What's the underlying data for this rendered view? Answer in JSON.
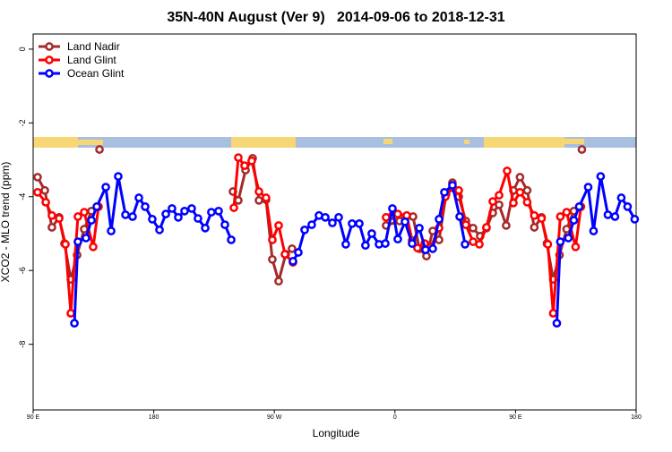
{
  "chart_data": {
    "type": "line",
    "title": "35N-40N August (Ver 9)   2014-09-06 to 2018-12-31",
    "xlabel": "Longitude",
    "ylabel": "XCO2 - MLO trend (ppm)",
    "xlim": [
      90,
      540
    ],
    "ylim": [
      -9.78,
      0.41
    ],
    "xticks": [
      {
        "value": 90,
        "label": "90 E"
      },
      180,
      {
        "value": 270,
        "label": "90 W"
      },
      {
        "value": 360,
        "label": "0"
      },
      {
        "value": 450,
        "label": "90 E"
      },
      {
        "value": 540,
        "label": "180"
      }
    ],
    "yticks": [
      0,
      -2,
      -4,
      -6,
      -8
    ],
    "legend": "top-left",
    "series": [
      {
        "name": "Land Nadir",
        "color": "#a52a2a",
        "x": [
          93.3,
          98.7,
          104.0,
          109.4,
          113.4,
          118.1,
          122.8,
          128.1,
          133.5,
          null,
          139.5,
          null,
          239.1,
          243.1,
          248.5,
          253.8,
          258.5,
          263.8,
          268.5,
          273.2,
          278.5,
          283.2,
          null,
          353.4,
          363.5,
          368.1,
          373.5,
          378.2,
          383.5,
          388.2,
          392.9,
          398.2,
          402.9,
          407.6,
          412.9,
          418.3,
          423.6,
          428.3,
          433.0,
          437.7,
          443.0,
          448.4,
          453.3,
          458.7,
          464.0,
          469.4,
          473.4,
          478.1,
          482.8,
          488.1,
          493.5,
          null,
          499.5
        ],
        "values": [
          -3.47,
          -3.83,
          -4.83,
          -4.56,
          -5.27,
          -6.24,
          -5.58,
          -4.88,
          -4.39,
          null,
          -2.72,
          null,
          -3.86,
          -4.1,
          -3.28,
          -2.96,
          -4.1,
          -4.08,
          -5.7,
          -6.29,
          -5.56,
          -5.41,
          null,
          -4.78,
          -4.66,
          -4.56,
          -4.54,
          -5.41,
          -5.61,
          -4.93,
          -5.17,
          -3.93,
          -3.62,
          -4.0,
          -4.66,
          -4.85,
          -5.07,
          -4.85,
          -4.44,
          -4.22,
          -4.78,
          -3.83,
          -3.47,
          -3.83,
          -4.83,
          -4.56,
          -5.27,
          -6.24,
          -5.58,
          -4.88,
          -4.39,
          null,
          -2.72
        ]
      },
      {
        "name": "Land Glint",
        "color": "#ff0000",
        "x": [
          93.3,
          99.4,
          104.0,
          109.4,
          114.1,
          118.1,
          123.4,
          128.1,
          134.8,
          138.8,
          null,
          239.8,
          243.1,
          247.8,
          253.1,
          258.5,
          263.8,
          268.5,
          273.2,
          277.9,
          283.9,
          null,
          353.4,
          358.1,
          362.1,
          368.8,
          372.8,
          376.8,
          382.2,
          386.9,
          392.9,
          397.6,
          402.9,
          407.6,
          412.9,
          418.3,
          423.0,
          428.3,
          433.0,
          437.7,
          443.7,
          448.4,
          453.3,
          458.7,
          464.0,
          469.4,
          474.1,
          478.1,
          483.4,
          488.1,
          494.8,
          498.8
        ],
        "values": [
          -3.88,
          -4.15,
          -4.51,
          -4.59,
          -5.29,
          -7.16,
          -4.54,
          -4.42,
          -5.36,
          -4.27,
          null,
          -4.3,
          -2.94,
          -3.16,
          -3.03,
          -3.86,
          -4.03,
          -5.17,
          -4.78,
          -5.56,
          -5.78,
          null,
          -4.56,
          -4.51,
          -4.47,
          -4.51,
          -5.19,
          -5.39,
          -5.27,
          -5.36,
          -4.85,
          -4.0,
          -3.76,
          -3.83,
          -4.76,
          -5.22,
          -5.29,
          -4.83,
          -4.13,
          -3.96,
          -3.3,
          -4.17,
          -3.88,
          -4.15,
          -4.51,
          -4.59,
          -5.29,
          -7.16,
          -4.54,
          -4.42,
          -5.36,
          -4.27
        ]
      },
      {
        "name": "Ocean Glint",
        "color": "#0000ff",
        "x": [
          120.8,
          123.4,
          129.4,
          133.5,
          137.5,
          144.2,
          148.2,
          153.5,
          158.9,
          164.2,
          168.9,
          173.6,
          178.9,
          184.3,
          189.0,
          193.6,
          198.3,
          203.0,
          208.3,
          213.0,
          218.4,
          223.0,
          228.4,
          233.1,
          237.8,
          null,
          283.9,
          287.9,
          292.6,
          297.9,
          303.3,
          308.0,
          313.3,
          318.0,
          323.3,
          328.0,
          333.4,
          338.0,
          342.7,
          348.1,
          352.8,
          358.1,
          362.1,
          367.5,
          372.8,
          378.2,
          382.8,
          388.2,
          392.9,
          396.9,
          402.9,
          408.3,
          412.3,
          null,
          480.8,
          483.4,
          489.4,
          493.5,
          497.5,
          504.2,
          508.2,
          513.5,
          518.9,
          524.2,
          528.9,
          533.6,
          538.9
        ],
        "values": [
          -7.43,
          -5.22,
          -5.12,
          -4.64,
          -4.27,
          -3.74,
          -4.93,
          -3.45,
          -4.49,
          -4.54,
          -4.03,
          -4.27,
          -4.61,
          -4.9,
          -4.47,
          -4.32,
          -4.56,
          -4.39,
          -4.32,
          -4.59,
          -4.85,
          -4.42,
          -4.39,
          -4.76,
          -5.17,
          null,
          -5.75,
          -5.51,
          -4.9,
          -4.76,
          -4.51,
          -4.56,
          -4.71,
          -4.56,
          -5.29,
          -4.73,
          -4.73,
          -5.32,
          -5.0,
          -5.29,
          -5.27,
          -4.32,
          -5.15,
          -4.68,
          -5.27,
          -4.85,
          -5.44,
          -5.41,
          -4.61,
          -3.88,
          -3.69,
          -4.54,
          -5.29,
          null,
          -7.43,
          -5.22,
          -5.12,
          -4.64,
          -4.27,
          -3.74,
          -4.93,
          -3.45,
          -4.49,
          -4.54,
          -4.03,
          -4.27,
          -4.61
        ]
      }
    ]
  }
}
